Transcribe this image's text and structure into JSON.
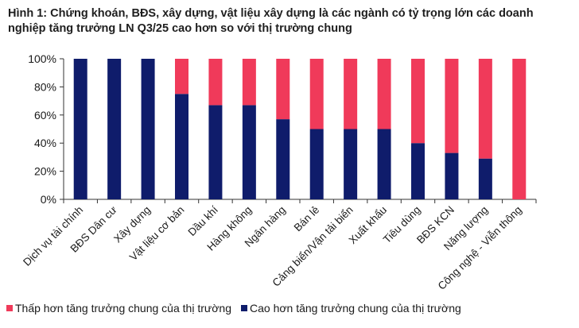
{
  "title": "Hình 1: Chứng khoán, BĐS, xây dựng, vật liệu xây dựng là các ngành có tỷ trọng lớn các doanh nghiệp tăng trưởng LN Q3/25 cao hơn so với thị trường chung",
  "chart_data": {
    "type": "bar",
    "stacked": true,
    "categories": [
      "Dịch vụ tài chính",
      "BĐS Dân cư",
      "Xây dựng",
      "Vật liệu cơ bản",
      "Dầu khí",
      "Hàng không",
      "Ngân hàng",
      "Bán lẻ",
      "Cảng biển/Vận tải biển",
      "Xuất khẩu",
      "Tiêu dùng",
      "BĐS KCN",
      "Năng lượng",
      "Công nghệ - Viễn thông"
    ],
    "series": [
      {
        "name": "Cao hơn tăng trưởng chung của thị trường",
        "color": "#0f1c6b",
        "values": [
          100,
          100,
          100,
          75,
          67,
          67,
          57,
          50,
          50,
          50,
          40,
          33,
          29,
          0
        ]
      },
      {
        "name": "Thấp hơn tăng trưởng chung của thị trường",
        "color": "#f03a5a",
        "values": [
          0,
          0,
          0,
          25,
          33,
          33,
          43,
          50,
          50,
          50,
          60,
          67,
          71,
          100
        ]
      }
    ],
    "yticks": [
      "0%",
      "20%",
      "40%",
      "60%",
      "80%",
      "100%"
    ],
    "ylim": [
      0,
      100
    ],
    "grid": false,
    "legend_position": "bottom"
  }
}
